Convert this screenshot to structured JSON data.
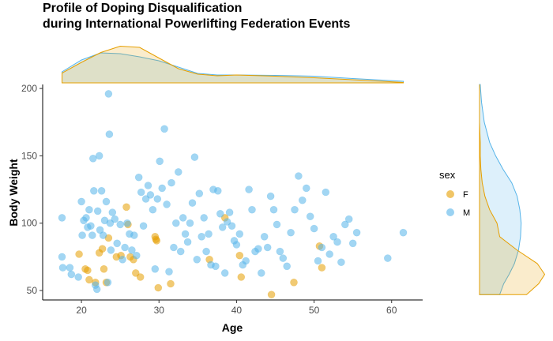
{
  "chart_data": {
    "type": "scatter",
    "title_lines": [
      "Profile of Doping Disqualification",
      "during International Powerlifting Federation Events"
    ],
    "xlabel": "Age",
    "ylabel": "Body Weight",
    "xlim": [
      15,
      64
    ],
    "ylim": [
      43,
      203
    ],
    "x_ticks": [
      20,
      30,
      40,
      50,
      60
    ],
    "y_ticks": [
      50,
      100,
      150,
      200
    ],
    "grid": false,
    "legend": {
      "title": "sex",
      "position": "right",
      "entries": [
        {
          "label": "F",
          "color": "#E69F00"
        },
        {
          "label": "M",
          "color": "#56B4E9"
        }
      ]
    },
    "marginals": {
      "top": "density of Age by sex",
      "right": "density of Body Weight by sex",
      "age_density": {
        "x": [
          17.5,
          20,
          22.5,
          25,
          27.5,
          30,
          32.5,
          35,
          37.5,
          40,
          45,
          50,
          55,
          61.5
        ],
        "F": [
          0.25,
          0.52,
          0.77,
          0.93,
          0.9,
          0.63,
          0.36,
          0.22,
          0.18,
          0.2,
          0.17,
          0.13,
          0.08,
          0.01
        ],
        "M": [
          0.28,
          0.58,
          0.76,
          0.74,
          0.66,
          0.56,
          0.4,
          0.24,
          0.2,
          0.2,
          0.19,
          0.17,
          0.11,
          0.04
        ]
      },
      "weight_density": {
        "y": [
          47,
          55,
          62,
          70,
          80,
          90,
          100,
          110,
          120,
          130,
          140,
          150,
          160,
          175,
          190,
          203
        ],
        "F": [
          0.7,
          0.88,
          0.97,
          0.86,
          0.56,
          0.3,
          0.26,
          0.15,
          0.08,
          0.04,
          0.02,
          0.01,
          0.01,
          0.0,
          0.0,
          0.0
        ],
        "M": [
          0.3,
          0.36,
          0.44,
          0.52,
          0.58,
          0.61,
          0.62,
          0.6,
          0.56,
          0.48,
          0.35,
          0.24,
          0.15,
          0.07,
          0.03,
          0.01
        ]
      }
    },
    "series": [
      {
        "name": "F",
        "color": "#E69F00",
        "x": [
          19.7,
          20.5,
          20.8,
          21.0,
          21.8,
          22.3,
          22.7,
          22.9,
          23.2,
          23.5,
          24.5,
          25.1,
          25.8,
          26.0,
          26.3,
          26.7,
          27.0,
          27.6,
          29.5,
          29.6,
          29.7,
          29.9,
          31.5,
          36.5,
          38.5,
          40.4,
          40.6,
          44.5,
          47.4,
          50.7,
          51.0
        ],
        "y": [
          77,
          66,
          65,
          58,
          56,
          78,
          81,
          66,
          56,
          89,
          75,
          76,
          112,
          99,
          75,
          73,
          63,
          60,
          90,
          88,
          87,
          52,
          55,
          73,
          104,
          76,
          60,
          47,
          56,
          83,
          67
        ]
      },
      {
        "name": "M",
        "color": "#56B4E9",
        "x": [
          17.5,
          17.5,
          17.6,
          18.5,
          18.7,
          19.6,
          20.0,
          20.1,
          20.3,
          20.6,
          20.8,
          21.0,
          21.2,
          21.4,
          21.5,
          21.6,
          21.8,
          22.0,
          22.1,
          22.3,
          22.4,
          22.6,
          22.8,
          23.0,
          23.2,
          23.4,
          23.5,
          23.6,
          23.7,
          23.8,
          24.0,
          24.3,
          24.6,
          25.0,
          25.3,
          25.6,
          25.9,
          26.2,
          26.5,
          26.8,
          27.1,
          27.4,
          27.7,
          28.0,
          28.3,
          28.6,
          28.9,
          29.2,
          29.5,
          29.8,
          30.1,
          30.4,
          30.7,
          31.0,
          31.3,
          31.6,
          31.9,
          32.2,
          32.5,
          32.8,
          33.1,
          33.4,
          33.7,
          34.0,
          34.3,
          34.6,
          34.9,
          35.2,
          35.5,
          35.8,
          36.1,
          36.4,
          36.7,
          37.0,
          37.3,
          37.6,
          37.9,
          38.2,
          38.5,
          38.8,
          39.1,
          39.4,
          39.7,
          40.0,
          40.4,
          40.8,
          41.2,
          41.6,
          42.0,
          42.4,
          42.8,
          43.2,
          43.6,
          44.0,
          44.4,
          44.8,
          45.2,
          45.6,
          46.0,
          46.5,
          47.0,
          47.5,
          48.0,
          48.5,
          49.0,
          49.5,
          50.0,
          50.5,
          51.0,
          51.5,
          52.0,
          52.5,
          53.0,
          53.5,
          54.0,
          54.5,
          55.0,
          55.5,
          59.5,
          61.5
        ],
        "y": [
          104,
          75,
          67,
          67,
          62,
          60,
          116,
          91,
          102,
          104,
          97,
          110,
          98,
          91,
          148,
          124,
          54,
          51,
          109,
          150,
          95,
          124,
          91,
          102,
          116,
          56,
          196,
          166,
          100,
          80,
          108,
          103,
          85,
          99,
          73,
          82,
          100,
          92,
          80,
          91,
          76,
          134,
          123,
          98,
          118,
          128,
          121,
          110,
          66,
          118,
          146,
          126,
          170,
          114,
          64,
          130,
          82,
          100,
          138,
          79,
          104,
          92,
          86,
          100,
          115,
          149,
          73,
          122,
          90,
          104,
          79,
          92,
          69,
          125,
          68,
          124,
          107,
          97,
          63,
          101,
          108,
          98,
          87,
          84,
          92,
          69,
          72,
          125,
          110,
          79,
          81,
          63,
          90,
          82,
          120,
          110,
          99,
          79,
          74,
          68,
          93,
          110,
          135,
          117,
          126,
          105,
          96,
          72,
          82,
          123,
          77,
          90,
          86,
          71,
          99,
          103,
          85,
          93,
          74,
          93
        ]
      }
    ]
  }
}
